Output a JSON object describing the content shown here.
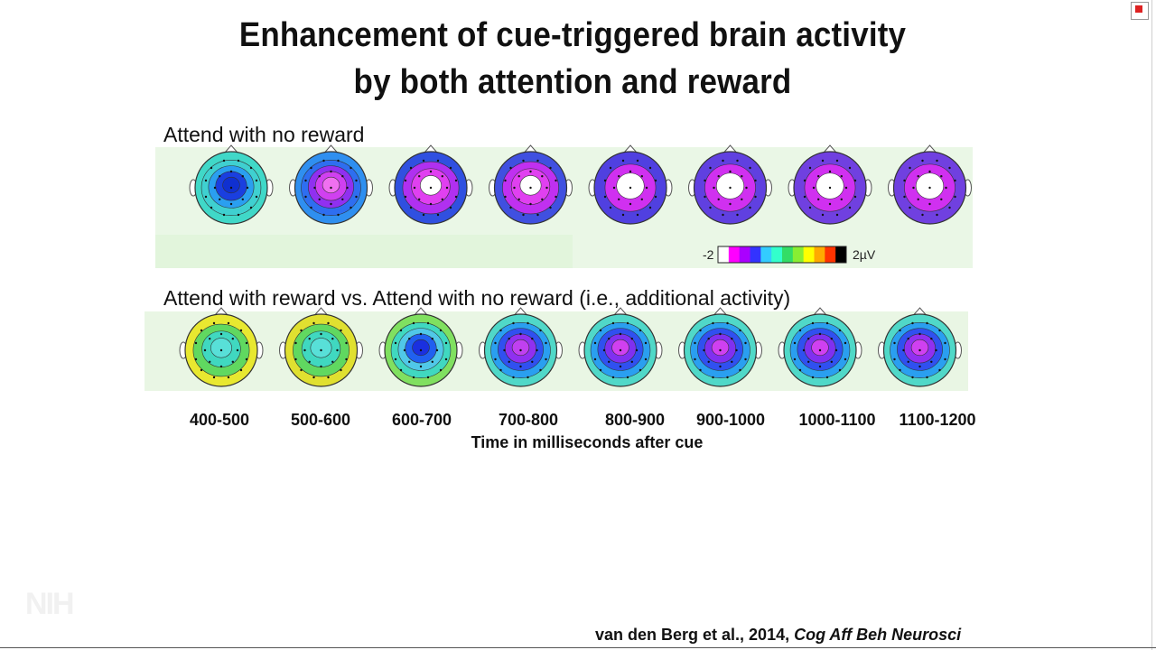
{
  "slide": {
    "title_line1": "Enhancement of cue-triggered brain activity",
    "title_line2": "by both attention and reward",
    "row1_label": "Attend with no reward",
    "row2_label": "Attend with reward vs. Attend with no reward (i.e., additional activity)",
    "scale": {
      "min_label": "-2",
      "max_label": "2µV"
    },
    "time_windows": [
      "400-500",
      "500-600",
      "600-700",
      "700-800",
      "800-900",
      "900-1000",
      "1000-1100",
      "1100-1200"
    ],
    "axis_label": "Time in milliseconds after cue",
    "citation_authors": "van den Berg et al., 2014, ",
    "citation_journal": "Cog Aff Beh Neurosci",
    "watermark": "NIH"
  },
  "colors": {
    "scale": [
      "#ffffff",
      "#ff00ff",
      "#aa00ff",
      "#3333ff",
      "#33ccff",
      "#33ffcc",
      "#33dd66",
      "#88ee33",
      "#ffff00",
      "#ffaa00",
      "#ff3300",
      "#000000"
    ]
  },
  "row1_maps": [
    {
      "bg": "#40d8c8",
      "rings": [
        "#3fd0d0",
        "#2a9ff0",
        "#1a3fe0",
        "#1030d0"
      ]
    },
    {
      "bg": "#2f8ff0",
      "rings": [
        "#2e6ef0",
        "#9030f0",
        "#d040f0",
        "#f070f0"
      ]
    },
    {
      "bg": "#3050e0",
      "rings": [
        "#b030f0",
        "#e040f0",
        "#ffffff"
      ]
    },
    {
      "bg": "#4050e0",
      "rings": [
        "#c030f0",
        "#e040f0",
        "#ffffff"
      ]
    },
    {
      "bg": "#5040e0",
      "rings": [
        "#d030f0",
        "#ffffff"
      ]
    },
    {
      "bg": "#6040e0",
      "rings": [
        "#d030f0",
        "#ffffff"
      ]
    },
    {
      "bg": "#7040e0",
      "rings": [
        "#d030f0",
        "#ffffff"
      ]
    },
    {
      "bg": "#7040e0",
      "rings": [
        "#d030f0",
        "#ffffff"
      ]
    }
  ],
  "row2_maps": [
    {
      "bg": "#e8e830",
      "rings": [
        "#60d860",
        "#40d8c0",
        "#58e0d8"
      ]
    },
    {
      "bg": "#e0e030",
      "rings": [
        "#60d860",
        "#40d8c0",
        "#58e0d8"
      ]
    },
    {
      "bg": "#80e060",
      "rings": [
        "#40d8c0",
        "#50c8e8",
        "#2060f0",
        "#1a30e0"
      ]
    },
    {
      "bg": "#50d8c8",
      "rings": [
        "#2a9ff0",
        "#3050f0",
        "#9030f0",
        "#c040f0"
      ]
    },
    {
      "bg": "#50d8c8",
      "rings": [
        "#2a9ff0",
        "#3050f0",
        "#8030f0",
        "#d040f0"
      ]
    },
    {
      "bg": "#50d8c8",
      "rings": [
        "#2a9ff0",
        "#3050f0",
        "#8030f0",
        "#d040f0"
      ]
    },
    {
      "bg": "#50d8c8",
      "rings": [
        "#2a9ff0",
        "#3050f0",
        "#8030f0",
        "#d040f0"
      ]
    },
    {
      "bg": "#50d8c8",
      "rings": [
        "#2a9ff0",
        "#3050f0",
        "#9030f0",
        "#d040f0"
      ]
    }
  ]
}
